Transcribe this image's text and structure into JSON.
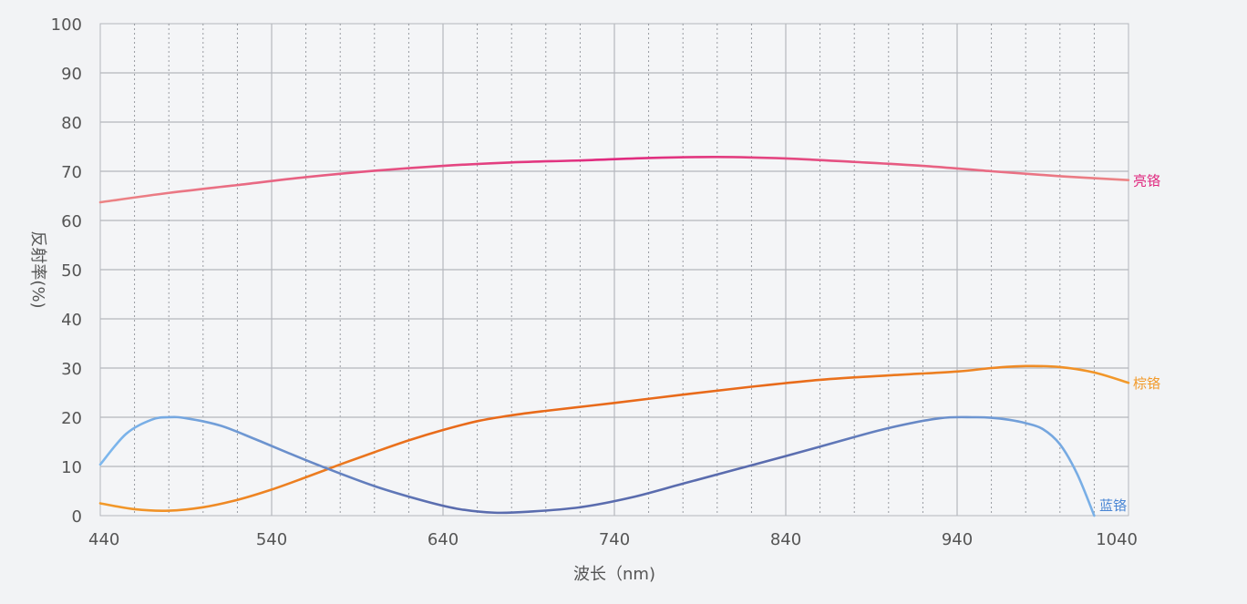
{
  "chart_data": {
    "type": "line",
    "xlabel": "波长（nm)",
    "ylabel": "反射率(%)",
    "xlim": [
      440,
      1040
    ],
    "ylim": [
      0,
      100
    ],
    "x_ticks": [
      440,
      540,
      640,
      740,
      840,
      940,
      1040
    ],
    "y_ticks": [
      0,
      10,
      20,
      30,
      40,
      50,
      60,
      70,
      80,
      90,
      100
    ],
    "grid": true,
    "legend": "inline labels at right end of each line",
    "series": [
      {
        "name": "亮铬",
        "colors": [
          "#ec8585",
          "#e0297f",
          "#ec8585"
        ],
        "label_color": "#e0297f",
        "x": [
          440,
          480,
          520,
          560,
          600,
          640,
          680,
          720,
          760,
          800,
          840,
          880,
          920,
          960,
          1000,
          1040
        ],
        "y": [
          63.7,
          65.6,
          67.2,
          68.8,
          70.1,
          71.1,
          71.8,
          72.2,
          72.7,
          72.9,
          72.6,
          71.9,
          71.1,
          70.0,
          69.0,
          68.2
        ]
      },
      {
        "name": "棕铬",
        "colors": [
          "#f29a2a",
          "#e86a1a",
          "#e86a1a",
          "#f29a2a"
        ],
        "label_color": "#f29a2a",
        "x": [
          440,
          460,
          480,
          500,
          520,
          540,
          560,
          580,
          600,
          620,
          640,
          660,
          680,
          700,
          740,
          780,
          820,
          860,
          900,
          940,
          960,
          980,
          1000,
          1020,
          1040
        ],
        "y": [
          2.5,
          1.3,
          1.0,
          1.7,
          3.2,
          5.3,
          7.8,
          10.4,
          12.9,
          15.3,
          17.4,
          19.2,
          20.4,
          21.3,
          22.9,
          24.6,
          26.2,
          27.6,
          28.5,
          29.3,
          30.0,
          30.4,
          30.2,
          29.1,
          27.0
        ]
      },
      {
        "name": "蓝铬",
        "colors": [
          "#7db8ee",
          "#5a6cae",
          "#5a6cae",
          "#7db8ee"
        ],
        "label_color": "#4a86d4",
        "x": [
          440,
          455,
          470,
          480,
          490,
          510,
          530,
          550,
          570,
          600,
          630,
          650,
          670,
          690,
          720,
          750,
          780,
          810,
          840,
          870,
          900,
          930,
          950,
          960,
          970,
          980,
          990,
          1000,
          1010,
          1020
        ],
        "y": [
          10.4,
          16.6,
          19.5,
          20.0,
          19.8,
          18.3,
          15.6,
          12.7,
          9.9,
          6.0,
          2.9,
          1.3,
          0.6,
          0.8,
          1.7,
          3.7,
          6.5,
          9.3,
          12.1,
          15.0,
          17.8,
          19.8,
          20.0,
          19.9,
          19.5,
          18.8,
          17.6,
          14.5,
          8.5,
          0
        ]
      }
    ]
  }
}
